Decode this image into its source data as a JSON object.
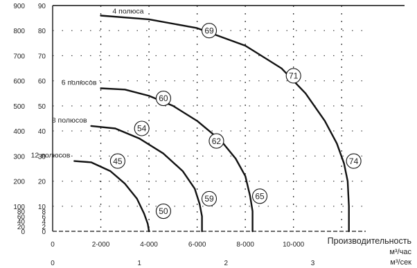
{
  "chart_data": {
    "type": "line",
    "title": "",
    "xlabel": "Производительность",
    "x_units": [
      "м³/час",
      "м³/сек"
    ],
    "x_ticks_m3h": [
      "0",
      "2-000",
      "4-000",
      "6-000",
      "8-000",
      "10-000"
    ],
    "x_ticks_m3s": [
      "0",
      "1",
      "2",
      "3"
    ],
    "xlim_m3h": [
      0,
      13000
    ],
    "y_ticks_left": [
      "0",
      "20",
      "40",
      "60",
      "80",
      "100",
      "200",
      "300",
      "400",
      "500",
      "600",
      "700",
      "800",
      "900"
    ],
    "y_ticks_right": [
      "0",
      "2",
      "4",
      "6",
      "8",
      "10",
      "20",
      "30",
      "40",
      "50",
      "60",
      "70",
      "80",
      "90"
    ],
    "ylim": [
      0,
      90
    ],
    "grid": true,
    "series": [
      {
        "name": "4 полюса",
        "label": "4 полюса",
        "points": [
          [
            2000,
            86
          ],
          [
            4000,
            84.5
          ],
          [
            6000,
            81
          ],
          [
            8000,
            74
          ],
          [
            9500,
            65
          ],
          [
            10500,
            55
          ],
          [
            11300,
            44
          ],
          [
            11800,
            35
          ],
          [
            12100,
            27
          ],
          [
            12250,
            20
          ],
          [
            12300,
            10
          ],
          [
            12300,
            0
          ]
        ],
        "markers": [
          {
            "value": "69",
            "x": 6500,
            "y": 80
          },
          {
            "value": "71",
            "x": 10000,
            "y": 62
          },
          {
            "value": "74",
            "x": 12500,
            "y": 28
          }
        ]
      },
      {
        "name": "6 полюсов",
        "label": "6 полюсов",
        "points": [
          [
            2000,
            57
          ],
          [
            3000,
            56.5
          ],
          [
            4000,
            54
          ],
          [
            5000,
            50
          ],
          [
            6000,
            44
          ],
          [
            7000,
            36
          ],
          [
            7600,
            29
          ],
          [
            8000,
            22
          ],
          [
            8200,
            14
          ],
          [
            8300,
            8
          ],
          [
            8300,
            0
          ]
        ],
        "markers": [
          {
            "value": "60",
            "x": 4600,
            "y": 53
          },
          {
            "value": "62",
            "x": 6800,
            "y": 36
          },
          {
            "value": "65",
            "x": 8600,
            "y": 14
          }
        ]
      },
      {
        "name": "8 полюсов",
        "label": "8 полюсов",
        "points": [
          [
            1600,
            42
          ],
          [
            2600,
            41
          ],
          [
            3600,
            37
          ],
          [
            4600,
            31
          ],
          [
            5400,
            24
          ],
          [
            5900,
            17
          ],
          [
            6100,
            11
          ],
          [
            6200,
            6
          ],
          [
            6200,
            0
          ]
        ],
        "markers": [
          {
            "value": "54",
            "x": 3700,
            "y": 41
          },
          {
            "value": "59",
            "x": 6500,
            "y": 13
          }
        ]
      },
      {
        "name": "12 полюсов",
        "label": "12 полюсов",
        "points": [
          [
            900,
            28
          ],
          [
            1600,
            27.5
          ],
          [
            2400,
            24
          ],
          [
            3000,
            19
          ],
          [
            3500,
            13
          ],
          [
            3800,
            7
          ],
          [
            3950,
            3
          ],
          [
            4000,
            0
          ]
        ],
        "markers": [
          {
            "value": "45",
            "x": 2700,
            "y": 28
          },
          {
            "value": "50",
            "x": 4600,
            "y": 8
          }
        ]
      }
    ]
  }
}
